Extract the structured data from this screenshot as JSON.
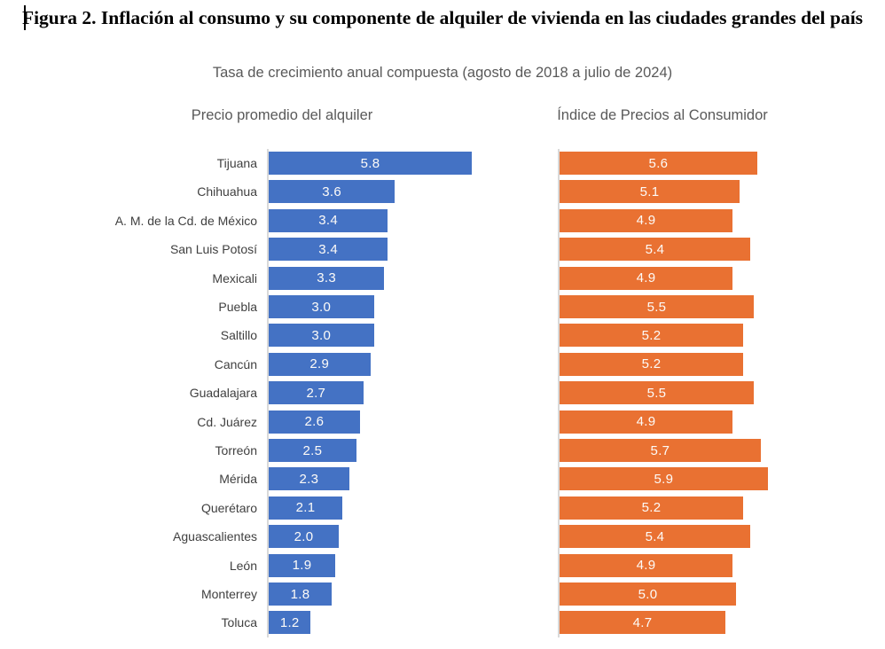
{
  "header": {
    "title": "Figura 2. Inflación al consumo y su componente de alquiler de vivienda en las ciudades grandes del país",
    "subtitle": "Tasa de crecimiento anual compuesta (agosto de 2018 a julio de 2024)"
  },
  "panels": {
    "left_title": "Precio promedio del alquiler",
    "right_title": "Índice de Precios al Consumidor"
  },
  "colors": {
    "alquiler_bar": "#4472C4",
    "ipc_bar": "#E97132",
    "axis_line": "#D9D9D9",
    "category_label": "#404040",
    "muted_text": "#595959",
    "value_label": "#fdfbf8"
  },
  "chart_data": {
    "type": "bar",
    "orientation": "horizontal",
    "title": "Figura 2. Inflación al consumo y su componente de alquiler de vivienda en las ciudades grandes del país",
    "subtitle": "Tasa de crecimiento anual compuesta (agosto de 2018 a julio de 2024)",
    "categories": [
      "Tijuana",
      "Chihuahua",
      "A. M. de la Cd. de México",
      "San Luis Potosí",
      "Mexicali",
      "Puebla",
      "Saltillo",
      "Cancún",
      "Guadalajara",
      "Cd. Juárez",
      "Torreón",
      "Mérida",
      "Querétaro",
      "Aguascalientes",
      "León",
      "Monterrey",
      "Toluca"
    ],
    "series": [
      {
        "name": "Precio promedio del alquiler",
        "color": "#4472C4",
        "values": [
          5.8,
          3.6,
          3.4,
          3.4,
          3.3,
          3.0,
          3.0,
          2.9,
          2.7,
          2.6,
          2.5,
          2.3,
          2.1,
          2.0,
          1.9,
          1.8,
          1.2
        ]
      },
      {
        "name": "Índice de Precios al Consumidor",
        "color": "#E97132",
        "values": [
          5.6,
          5.1,
          4.9,
          5.4,
          4.9,
          5.5,
          5.2,
          5.2,
          5.5,
          4.9,
          5.7,
          5.9,
          5.2,
          5.4,
          4.9,
          5.0,
          4.7
        ]
      }
    ],
    "value_labels": "inside-center, one decimal",
    "axis_ticks": "none",
    "grid": "off",
    "legend": "none (separate panel titles above each series)"
  }
}
